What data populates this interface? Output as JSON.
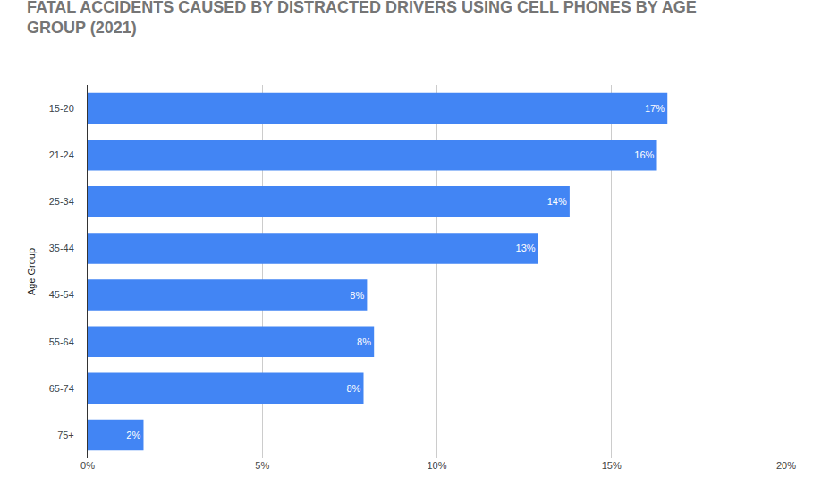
{
  "chart_data": {
    "type": "bar",
    "orientation": "horizontal",
    "title": "FATAL ACCIDENTS CAUSED BY DISTRACTED DRIVERS USING CELL PHONES BY AGE GROUP (2021)",
    "y_label": "Age Group",
    "categories": [
      "15-20",
      "21-24",
      "25-34",
      "35-44",
      "45-54",
      "55-64",
      "65-74",
      "75+"
    ],
    "values": [
      16.6,
      16.3,
      13.8,
      12.9,
      8.0,
      8.2,
      7.9,
      1.6
    ],
    "value_labels": [
      "17%",
      "16%",
      "14%",
      "13%",
      "8%",
      "8%",
      "8%",
      "2%"
    ],
    "color": "#4285f4",
    "xlim": [
      0,
      20
    ],
    "xticks": [
      {
        "value": 0,
        "label": "0%"
      },
      {
        "value": 5,
        "label": "5%"
      },
      {
        "value": 10,
        "label": "10%"
      },
      {
        "value": 15,
        "label": "15%"
      },
      {
        "value": 20,
        "label": "20%"
      }
    ],
    "grid": true,
    "data_labels": true
  }
}
